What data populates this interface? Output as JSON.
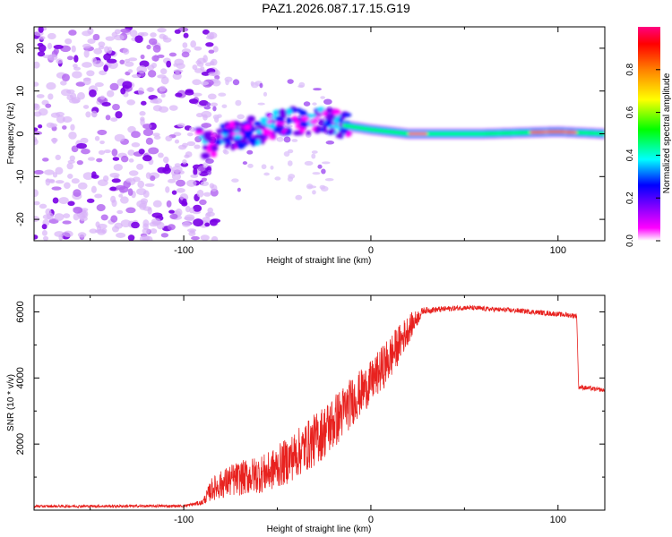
{
  "title": "PAZ1.2026.087.17.15.G19",
  "chart_data": [
    {
      "type": "heatmap",
      "name": "spectrogram",
      "title": "PAZ1.2026.087.17.15.G19",
      "xlabel": "Height of straight line (km)",
      "ylabel": "Frequency (Hz)",
      "xlim": [
        -180,
        125
      ],
      "ylim": [
        -25,
        25
      ],
      "xticks": [
        -100,
        0,
        100
      ],
      "yticks": [
        -20,
        -10,
        0,
        10,
        20
      ],
      "colorbar": {
        "label": "Normalized spectral amplitude",
        "range": [
          0,
          1
        ],
        "ticks": [
          "0.0",
          "0.2",
          "0.4",
          "0.6",
          "0.8"
        ],
        "colors": [
          "#ffffff",
          "#ff00ff",
          "#8000ff",
          "#0000ff",
          "#00ffff",
          "#00ff00",
          "#ffff00",
          "#ff8000",
          "#ff0000"
        ]
      },
      "features": {
        "noise_region_x": [
          -180,
          -90
        ],
        "signal_trend": [
          {
            "x": -90,
            "y": -3
          },
          {
            "x": -80,
            "y": -1
          },
          {
            "x": -60,
            "y": 1
          },
          {
            "x": -40,
            "y": 3
          },
          {
            "x": -25,
            "y": 3.5
          },
          {
            "x": -15,
            "y": 2
          },
          {
            "x": 0,
            "y": 1
          },
          {
            "x": 20,
            "y": 0
          },
          {
            "x": 60,
            "y": 0
          },
          {
            "x": 100,
            "y": 0.5
          },
          {
            "x": 125,
            "y": 0
          }
        ],
        "peak_segments_x": [
          [
            20,
            30
          ],
          [
            85,
            110
          ]
        ]
      }
    },
    {
      "type": "line",
      "name": "snr",
      "xlabel": "Height of straight line (km)",
      "ylabel": "SNR (10 * v/v)",
      "xlim": [
        -180,
        125
      ],
      "ylim": [
        0,
        6500
      ],
      "xticks": [
        -100,
        0,
        100
      ],
      "yticks": [
        2000,
        4000,
        6000
      ],
      "line_color": "#e8221f",
      "series": [
        {
          "name": "SNR",
          "envelope": [
            {
              "x": -180,
              "base": 100,
              "spread": 80
            },
            {
              "x": -100,
              "base": 110,
              "spread": 80
            },
            {
              "x": -90,
              "base": 200,
              "spread": 150
            },
            {
              "x": -85,
              "base": 500,
              "spread": 700
            },
            {
              "x": -75,
              "base": 700,
              "spread": 1000
            },
            {
              "x": -65,
              "base": 800,
              "spread": 1100
            },
            {
              "x": -55,
              "base": 900,
              "spread": 1200
            },
            {
              "x": -45,
              "base": 1200,
              "spread": 1400
            },
            {
              "x": -30,
              "base": 1800,
              "spread": 1600
            },
            {
              "x": -20,
              "base": 2300,
              "spread": 1700
            },
            {
              "x": -10,
              "base": 3000,
              "spread": 1500
            },
            {
              "x": 0,
              "base": 3600,
              "spread": 1300
            },
            {
              "x": 10,
              "base": 4300,
              "spread": 1400
            },
            {
              "x": 20,
              "base": 5300,
              "spread": 900
            },
            {
              "x": 28,
              "base": 6000,
              "spread": 200
            },
            {
              "x": 50,
              "base": 6100,
              "spread": 150
            },
            {
              "x": 80,
              "base": 6000,
              "spread": 150
            },
            {
              "x": 110,
              "base": 5850,
              "spread": 150
            },
            {
              "x": 111,
              "base": 3700,
              "spread": 150
            },
            {
              "x": 125,
              "base": 3600,
              "spread": 120
            }
          ]
        }
      ]
    }
  ]
}
